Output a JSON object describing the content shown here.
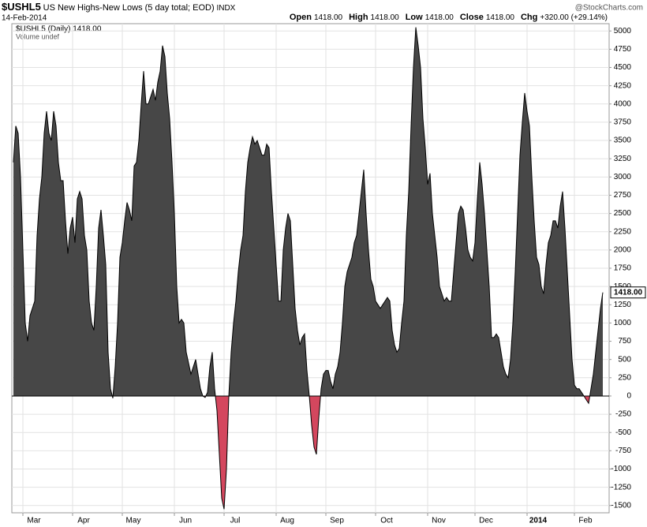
{
  "chart_data": {
    "type": "area",
    "symbol": "$USHL5",
    "title": "US New Highs-New Lows (5 day total; EOD)",
    "exchange": "INDX",
    "date": "14-Feb-2014",
    "quote": [
      [
        "Open",
        "1418.00"
      ],
      [
        "High",
        "1418.00"
      ],
      [
        "Low",
        "1418.00"
      ],
      [
        "Close",
        "1418.00"
      ],
      [
        "Chg",
        "+320.00 (+29.14%)"
      ]
    ],
    "watermark": "@StockCharts.com",
    "volume_note": "Volume undef",
    "series": [
      {
        "name": "$USHL5 (Daily) 1418.00",
        "color": "#474747",
        "negative_color": "#d4475e",
        "last_label": "1418.00",
        "values": [
          3200,
          3700,
          3600,
          3000,
          2000,
          1000,
          750,
          1100,
          1200,
          1300,
          2200,
          2700,
          3000,
          3600,
          3900,
          3600,
          3500,
          3900,
          3700,
          3200,
          2950,
          2950,
          2400,
          1950,
          2300,
          2450,
          2100,
          2700,
          2800,
          2700,
          2200,
          2000,
          1300,
          1000,
          900,
          1500,
          2300,
          2550,
          2200,
          1800,
          600,
          100,
          -30,
          400,
          1000,
          1900,
          2100,
          2400,
          2650,
          2550,
          2400,
          3150,
          3200,
          3500,
          4000,
          4450,
          4000,
          4000,
          4100,
          4200,
          4050,
          4300,
          4450,
          4800,
          4650,
          4150,
          3800,
          3200,
          2500,
          1500,
          1000,
          1050,
          1000,
          600,
          450,
          300,
          400,
          500,
          300,
          100,
          0,
          -20,
          50,
          400,
          600,
          100,
          -200,
          -800,
          -1400,
          -1550,
          -1000,
          0,
          600,
          1000,
          1300,
          1700,
          2000,
          2200,
          2800,
          3200,
          3400,
          3550,
          3450,
          3500,
          3400,
          3300,
          3300,
          3450,
          3400,
          2800,
          2300,
          1800,
          1300,
          1300,
          2000,
          2300,
          2500,
          2400,
          1800,
          1200,
          900,
          700,
          800,
          850,
          350,
          0,
          -400,
          -700,
          -800,
          -300,
          100,
          300,
          350,
          350,
          200,
          100,
          300,
          400,
          600,
          1000,
          1500,
          1700,
          1800,
          1900,
          2100,
          2200,
          2500,
          2800,
          3100,
          2500,
          2000,
          1600,
          1500,
          1300,
          1250,
          1200,
          1250,
          1300,
          1350,
          1300,
          900,
          700,
          600,
          650,
          1000,
          1300,
          2200,
          2800,
          3700,
          4500,
          5050,
          4800,
          4500,
          3800,
          3400,
          2900,
          3050,
          2500,
          2200,
          1900,
          1500,
          1400,
          1300,
          1350,
          1300,
          1300,
          1700,
          2100,
          2500,
          2600,
          2550,
          2300,
          2000,
          1900,
          1850,
          2100,
          2700,
          3200,
          2900,
          2500,
          2000,
          1500,
          800,
          800,
          850,
          800,
          600,
          400,
          300,
          250,
          500,
          1000,
          1700,
          2500,
          3300,
          3750,
          4150,
          3900,
          3700,
          3000,
          2400,
          1900,
          1800,
          1500,
          1400,
          1800,
          2100,
          2200,
          2400,
          2400,
          2300,
          2600,
          2800,
          2300,
          1700,
          1100,
          500,
          150,
          100,
          100,
          50,
          0,
          -50,
          -100,
          100,
          300,
          600,
          900,
          1200,
          1418
        ]
      }
    ],
    "xticks": [
      {
        "value": 4,
        "label": "Mar"
      },
      {
        "value": 25,
        "label": "Apr"
      },
      {
        "value": 46,
        "label": "May"
      },
      {
        "value": 68,
        "label": "Jun"
      },
      {
        "value": 89,
        "label": "Jul"
      },
      {
        "value": 111,
        "label": "Aug"
      },
      {
        "value": 132,
        "label": "Sep"
      },
      {
        "value": 153,
        "label": "Oct"
      },
      {
        "value": 175,
        "label": "Nov"
      },
      {
        "value": 195,
        "label": "Dec"
      },
      {
        "value": 217,
        "label": "2014"
      },
      {
        "value": 237,
        "label": "Feb"
      }
    ],
    "xlim": [
      0,
      250
    ],
    "ylim": [
      -1600,
      5100
    ],
    "yticks": [
      -1500,
      -1250,
      -1000,
      -750,
      -500,
      -250,
      0,
      250,
      500,
      750,
      1000,
      1250,
      1500,
      1750,
      2000,
      2250,
      2500,
      2750,
      3000,
      3250,
      3500,
      3750,
      4000,
      4250,
      4500,
      4750,
      5000
    ],
    "grid": true
  }
}
